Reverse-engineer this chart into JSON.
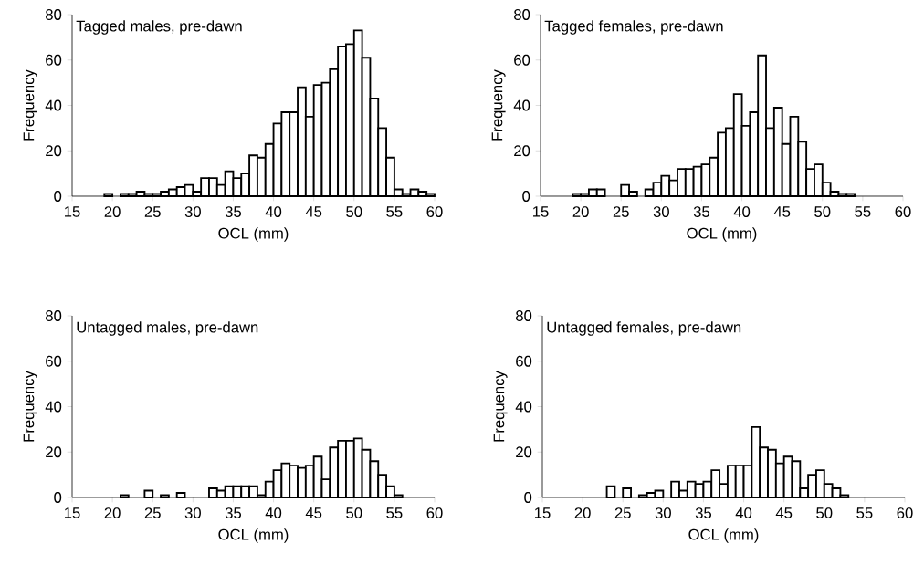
{
  "chart_data": [
    {
      "type": "histogram",
      "title": "Tagged males, pre-dawn",
      "xlabel": "OCL (mm)",
      "ylabel": "Frequency",
      "color": "#ffffff",
      "bins": [
        15,
        16,
        17,
        18,
        19,
        20,
        21,
        22,
        23,
        24,
        25,
        26,
        27,
        28,
        29,
        30,
        31,
        32,
        33,
        34,
        35,
        36,
        37,
        38,
        39,
        40,
        41,
        42,
        43,
        44,
        45,
        46,
        47,
        48,
        49,
        50,
        51,
        52,
        53,
        54,
        55,
        56,
        57,
        58,
        59,
        60
      ],
      "values": [
        0,
        0,
        0,
        0,
        1,
        0,
        1,
        1,
        2,
        1,
        1,
        2,
        3,
        4,
        5,
        2,
        8,
        8,
        5,
        11,
        8,
        10,
        18,
        17,
        23,
        32,
        37,
        37,
        48,
        35,
        49,
        50,
        56,
        66,
        67,
        73,
        61,
        43,
        30,
        17,
        3,
        1,
        3,
        2,
        1
      ],
      "xlim": [
        15,
        60
      ],
      "ylim": [
        0,
        80
      ],
      "xticks": [
        15,
        20,
        25,
        30,
        35,
        40,
        45,
        50,
        55,
        60
      ],
      "yticks": [
        0,
        20,
        40,
        60,
        80
      ]
    },
    {
      "type": "histogram",
      "title": "Tagged females, pre-dawn",
      "xlabel": "OCL (mm)",
      "ylabel": "Frequency",
      "color": "#ffffff",
      "bins": [
        15,
        16,
        17,
        18,
        19,
        20,
        21,
        22,
        23,
        24,
        25,
        26,
        27,
        28,
        29,
        30,
        31,
        32,
        33,
        34,
        35,
        36,
        37,
        38,
        39,
        40,
        41,
        42,
        43,
        44,
        45,
        46,
        47,
        48,
        49,
        50,
        51,
        52,
        53,
        54,
        55,
        56,
        57,
        58,
        59,
        60
      ],
      "values": [
        0,
        0,
        0,
        0,
        1,
        1,
        3,
        3,
        0,
        0,
        5,
        2,
        0,
        3,
        6,
        9,
        7,
        12,
        12,
        13,
        14,
        17,
        28,
        30,
        45,
        31,
        37,
        62,
        30,
        39,
        23,
        35,
        24,
        12,
        14,
        6,
        2,
        1,
        1,
        0,
        0,
        0,
        0,
        0,
        0
      ],
      "xlim": [
        15,
        60
      ],
      "ylim": [
        0,
        80
      ],
      "xticks": [
        15,
        20,
        25,
        30,
        35,
        40,
        45,
        50,
        55,
        60
      ],
      "yticks": [
        0,
        20,
        40,
        60,
        80
      ]
    },
    {
      "type": "histogram",
      "title": "Untagged males, pre-dawn",
      "xlabel": "OCL (mm)",
      "ylabel": "Frequency",
      "color": "#ffffff",
      "bins": [
        15,
        16,
        17,
        18,
        19,
        20,
        21,
        22,
        23,
        24,
        25,
        26,
        27,
        28,
        29,
        30,
        31,
        32,
        33,
        34,
        35,
        36,
        37,
        38,
        39,
        40,
        41,
        42,
        43,
        44,
        45,
        46,
        47,
        48,
        49,
        50,
        51,
        52,
        53,
        54,
        55,
        56,
        57,
        58,
        59,
        60
      ],
      "values": [
        0,
        0,
        0,
        0,
        0,
        0,
        1,
        0,
        0,
        3,
        0,
        1,
        0,
        2,
        0,
        0,
        0,
        4,
        3,
        5,
        5,
        5,
        5,
        1,
        7,
        12,
        15,
        14,
        13,
        14,
        18,
        8,
        22,
        25,
        25,
        26,
        21,
        16,
        10,
        5,
        1,
        0,
        0,
        0,
        0
      ],
      "xlim": [
        15,
        60
      ],
      "ylim": [
        0,
        80
      ],
      "xticks": [
        15,
        20,
        25,
        30,
        35,
        40,
        45,
        50,
        55,
        60
      ],
      "yticks": [
        0,
        20,
        40,
        60,
        80
      ]
    },
    {
      "type": "histogram",
      "title": "Untagged females, pre-dawn",
      "xlabel": "OCL (mm)",
      "ylabel": "Frequency",
      "color": "#ffffff",
      "bins": [
        15,
        16,
        17,
        18,
        19,
        20,
        21,
        22,
        23,
        24,
        25,
        26,
        27,
        28,
        29,
        30,
        31,
        32,
        33,
        34,
        35,
        36,
        37,
        38,
        39,
        40,
        41,
        42,
        43,
        44,
        45,
        46,
        47,
        48,
        49,
        50,
        51,
        52,
        53,
        54,
        55,
        56,
        57,
        58,
        59,
        60
      ],
      "values": [
        0,
        0,
        0,
        0,
        0,
        0,
        0,
        0,
        5,
        0,
        4,
        0,
        1,
        2,
        3,
        0,
        7,
        3,
        7,
        6,
        7,
        12,
        6,
        14,
        14,
        14,
        31,
        22,
        21,
        15,
        18,
        16,
        4,
        10,
        12,
        6,
        4,
        1,
        0,
        0,
        0,
        0,
        0,
        0,
        0
      ],
      "xlim": [
        15,
        60
      ],
      "ylim": [
        0,
        80
      ],
      "xticks": [
        15,
        20,
        25,
        30,
        35,
        40,
        45,
        50,
        55,
        60
      ],
      "yticks": [
        0,
        20,
        40,
        60,
        80
      ]
    }
  ]
}
